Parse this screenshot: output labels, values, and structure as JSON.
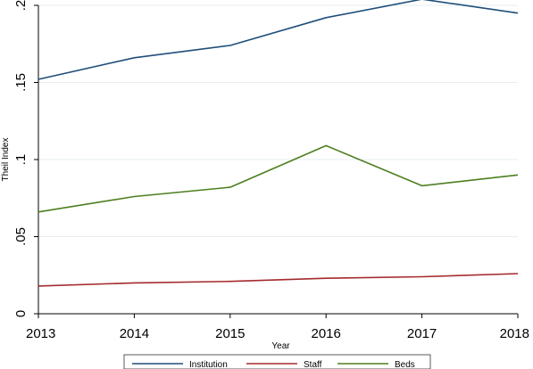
{
  "chart_data": {
    "type": "line",
    "xlabel": "Year",
    "ylabel": "Theil Index",
    "x": [
      2013,
      2014,
      2015,
      2016,
      2017,
      2018
    ],
    "x_tick_labels": [
      "2013",
      "2014",
      "2015",
      "2016",
      "2017",
      "2018"
    ],
    "y_ticks": [
      0,
      0.05,
      0.1,
      0.15,
      0.2
    ],
    "y_tick_labels": [
      "0",
      ".05",
      ".1",
      ".15",
      ".2"
    ],
    "xlim": [
      2013,
      2018
    ],
    "ylim": [
      0,
      0.2
    ],
    "grid": "horizontal",
    "legend_position": "bottom",
    "series": [
      {
        "name": "Institution",
        "color": "#1f4e79",
        "values": [
          0.152,
          0.166,
          0.174,
          0.192,
          0.204,
          0.195
        ]
      },
      {
        "name": "Staff",
        "color": "#a52a2a",
        "values": [
          0.018,
          0.02,
          0.021,
          0.023,
          0.024,
          0.026
        ]
      },
      {
        "name": "Beds",
        "color": "#4d7f1f",
        "values": [
          0.066,
          0.076,
          0.082,
          0.109,
          0.083,
          0.09
        ]
      }
    ]
  }
}
